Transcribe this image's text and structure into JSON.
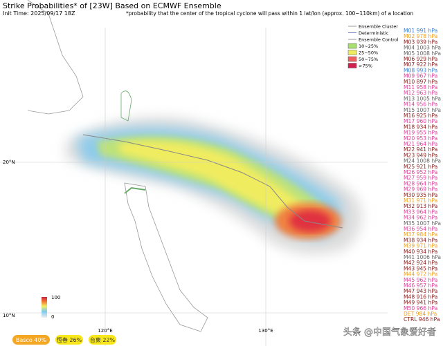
{
  "header": {
    "title": "Strike Probabilities* of [23W] Based on ECMWF Ensemble",
    "init_time": "Init Time: 2025/09/17 18Z",
    "note": "*probability that the center of the tropical cyclone will pass within 1 lat/lon (approx. 100~110km) of a location"
  },
  "legend": {
    "items": [
      "Ensemble Cluster",
      "Deterministic",
      "Ensemble Control",
      "10~25%",
      "25~50%",
      "50~75%",
      ">75%"
    ]
  },
  "map": {
    "lat_labels": [
      "20°N",
      "10°N"
    ],
    "lon_labels": [
      "120°E",
      "130°E"
    ]
  },
  "colorbar": {
    "labels": [
      "100",
      "0"
    ]
  },
  "members": [
    {
      "label": "M01 991 hPa",
      "color": "#3b82d6"
    },
    {
      "label": "M02 978 hPa",
      "color": "#f0a020"
    },
    {
      "label": "M03 939 hPa",
      "color": "#8b1a1a"
    },
    {
      "label": "M04 1003 hPa",
      "color": "#666666"
    },
    {
      "label": "M05 1008 hPa",
      "color": "#666666"
    },
    {
      "label": "M06 929 hPa",
      "color": "#8b1a1a"
    },
    {
      "label": "M07 922 hPa",
      "color": "#8b1a1a"
    },
    {
      "label": "M08 993 hPa",
      "color": "#3b82d6"
    },
    {
      "label": "M09 967 hPa",
      "color": "#e0409a"
    },
    {
      "label": "M10 897 hPa",
      "color": "#8b1a1a"
    },
    {
      "label": "M11 958 hPa",
      "color": "#e0409a"
    },
    {
      "label": "M12 963 hPa",
      "color": "#e0409a"
    },
    {
      "label": "M13 1005 hPa",
      "color": "#666666"
    },
    {
      "label": "M14 956 hPa",
      "color": "#e0409a"
    },
    {
      "label": "M15 1007 hPa",
      "color": "#666666"
    },
    {
      "label": "M16 925 hPa",
      "color": "#8b1a1a"
    },
    {
      "label": "M17 960 hPa",
      "color": "#e0409a"
    },
    {
      "label": "M18 934 hPa",
      "color": "#8b1a1a"
    },
    {
      "label": "M19 955 hPa",
      "color": "#e0409a"
    },
    {
      "label": "M20 953 hPa",
      "color": "#e0409a"
    },
    {
      "label": "M21 964 hPa",
      "color": "#e0409a"
    },
    {
      "label": "M22 941 hPa",
      "color": "#8b1a1a"
    },
    {
      "label": "M23 949 hPa",
      "color": "#8b1a1a"
    },
    {
      "label": "M24 1008 hPa",
      "color": "#666666"
    },
    {
      "label": "M25 921 hPa",
      "color": "#8b1a1a"
    },
    {
      "label": "M26 952 hPa",
      "color": "#e0409a"
    },
    {
      "label": "M27 959 hPa",
      "color": "#e0409a"
    },
    {
      "label": "M28 964 hPa",
      "color": "#e0409a"
    },
    {
      "label": "M29 969 hPa",
      "color": "#e0409a"
    },
    {
      "label": "M30 935 hPa",
      "color": "#8b1a1a"
    },
    {
      "label": "M31 971 hPa",
      "color": "#f0a020"
    },
    {
      "label": "M32 913 hPa",
      "color": "#8b1a1a"
    },
    {
      "label": "M33 964 hPa",
      "color": "#e0409a"
    },
    {
      "label": "M34 962 hPa",
      "color": "#e0409a"
    },
    {
      "label": "M35 1007 hPa",
      "color": "#666666"
    },
    {
      "label": "M36 954 hPa",
      "color": "#e0409a"
    },
    {
      "label": "M37 984 hPa",
      "color": "#f0a020"
    },
    {
      "label": "M38 934 hPa",
      "color": "#8b1a1a"
    },
    {
      "label": "M39 971 hPa",
      "color": "#f0a020"
    },
    {
      "label": "M40 934 hPa",
      "color": "#8b1a1a"
    },
    {
      "label": "M41 1006 hPa",
      "color": "#666666"
    },
    {
      "label": "M42 924 hPa",
      "color": "#8b1a1a"
    },
    {
      "label": "M43 945 hPa",
      "color": "#8b1a1a"
    },
    {
      "label": "M44 972 hPa",
      "color": "#f0a020"
    },
    {
      "label": "M45 962 hPa",
      "color": "#e0409a"
    },
    {
      "label": "M46 957 hPa",
      "color": "#e0409a"
    },
    {
      "label": "M47 943 hPa",
      "color": "#8b1a1a"
    },
    {
      "label": "M48 916 hPa",
      "color": "#8b1a1a"
    },
    {
      "label": "M49 941 hPa",
      "color": "#8b1a1a"
    },
    {
      "label": "M50 966 hPa",
      "color": "#e0409a"
    },
    {
      "label": "DET 984 hPa",
      "color": "#f0a020"
    },
    {
      "label": "CTRL 946 hPa",
      "color": "#8b1a1a"
    }
  ],
  "badges": [
    {
      "text": "Basco 40%",
      "color": "#f5a623"
    },
    {
      "text": "恆春 26%",
      "color": "#f8e71c"
    },
    {
      "text": "台東 22%",
      "color": "#f8e71c"
    }
  ],
  "watermark": "头条 @中国气象爱好者"
}
